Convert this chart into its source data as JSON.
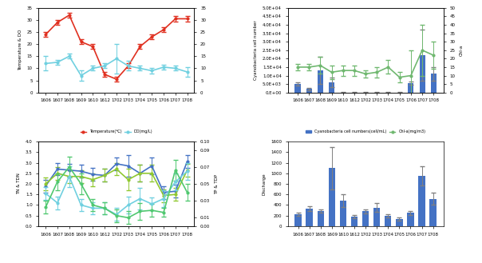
{
  "x_labels": [
    "1606",
    "1607",
    "1608",
    "1609",
    "1610",
    "1612",
    "1702",
    "1703",
    "1704",
    "1705",
    "1706",
    "1707",
    "1708"
  ],
  "temp": [
    24,
    29,
    32,
    21,
    19,
    7.5,
    5.5,
    11,
    19,
    23,
    26,
    30.5,
    30.5
  ],
  "temp_err": [
    1,
    1,
    1,
    1,
    1,
    1,
    1,
    1,
    1,
    1,
    1,
    1,
    1
  ],
  "do": [
    12,
    12.5,
    15,
    7,
    10,
    11,
    14,
    11,
    10,
    9,
    10.5,
    10,
    8.5
  ],
  "do_err": [
    3,
    1,
    1,
    2,
    1,
    1,
    6,
    2,
    1,
    1,
    1,
    1,
    2
  ],
  "cyano": [
    5000,
    2000,
    13000,
    6000,
    50,
    50,
    50,
    50,
    50,
    50,
    5500,
    22000,
    11000
  ],
  "cyano_err": [
    1000,
    500,
    8000,
    3000,
    100,
    100,
    100,
    100,
    100,
    100,
    1000,
    15000,
    4000
  ],
  "chla": [
    15,
    15,
    16,
    12,
    13,
    13,
    11,
    12,
    15,
    9,
    10,
    25,
    22
  ],
  "chla_err": [
    2,
    2,
    5,
    4,
    3,
    3,
    2,
    3,
    4,
    3,
    15,
    15,
    8
  ],
  "TN": [
    1.9,
    2.7,
    2.65,
    2.6,
    2.45,
    2.4,
    2.95,
    2.85,
    2.5,
    2.85,
    1.6,
    1.65,
    3.05
  ],
  "TN_err": [
    0.3,
    0.3,
    0.3,
    0.3,
    0.3,
    0.3,
    0.3,
    0.5,
    0.4,
    0.4,
    0.3,
    0.3,
    0.3
  ],
  "TDN": [
    2.0,
    2.5,
    2.35,
    2.35,
    2.2,
    2.4,
    2.7,
    2.2,
    2.5,
    2.5,
    1.45,
    1.5,
    2.65
  ],
  "TDN_err": [
    0.3,
    0.3,
    0.3,
    0.3,
    0.3,
    0.3,
    0.3,
    0.5,
    0.4,
    0.4,
    0.3,
    0.3,
    0.3
  ],
  "TP": [
    1.55,
    1.1,
    2.35,
    1.0,
    0.85,
    0.85,
    0.55,
    1.0,
    1.3,
    1.05,
    1.3,
    2.1,
    2.6
  ],
  "TP_err": [
    0.3,
    0.3,
    0.5,
    0.3,
    0.3,
    0.3,
    0.3,
    0.4,
    0.5,
    0.3,
    0.4,
    0.4,
    0.4
  ],
  "TDP": [
    0.9,
    2.1,
    2.8,
    2.0,
    1.0,
    0.85,
    0.5,
    0.4,
    0.7,
    0.75,
    0.65,
    2.65,
    1.6
  ],
  "TDP_err": [
    0.3,
    0.4,
    0.5,
    0.5,
    0.3,
    0.3,
    0.3,
    0.3,
    0.4,
    0.3,
    0.2,
    0.5,
    0.4
  ],
  "discharge": [
    230,
    330,
    280,
    1100,
    480,
    180,
    280,
    350,
    200,
    140,
    250,
    950,
    520
  ],
  "discharge_err": [
    30,
    50,
    30,
    400,
    120,
    30,
    40,
    80,
    30,
    30,
    40,
    180,
    120
  ],
  "color_temp": "#e03020",
  "color_do": "#70d0e0",
  "color_cyano": "#4472c4",
  "color_chla": "#70b870",
  "color_TN": "#4472c4",
  "color_TDN": "#90c830",
  "color_TP": "#70d0e0",
  "color_TDP": "#50c870",
  "color_discharge": "#4472c4"
}
